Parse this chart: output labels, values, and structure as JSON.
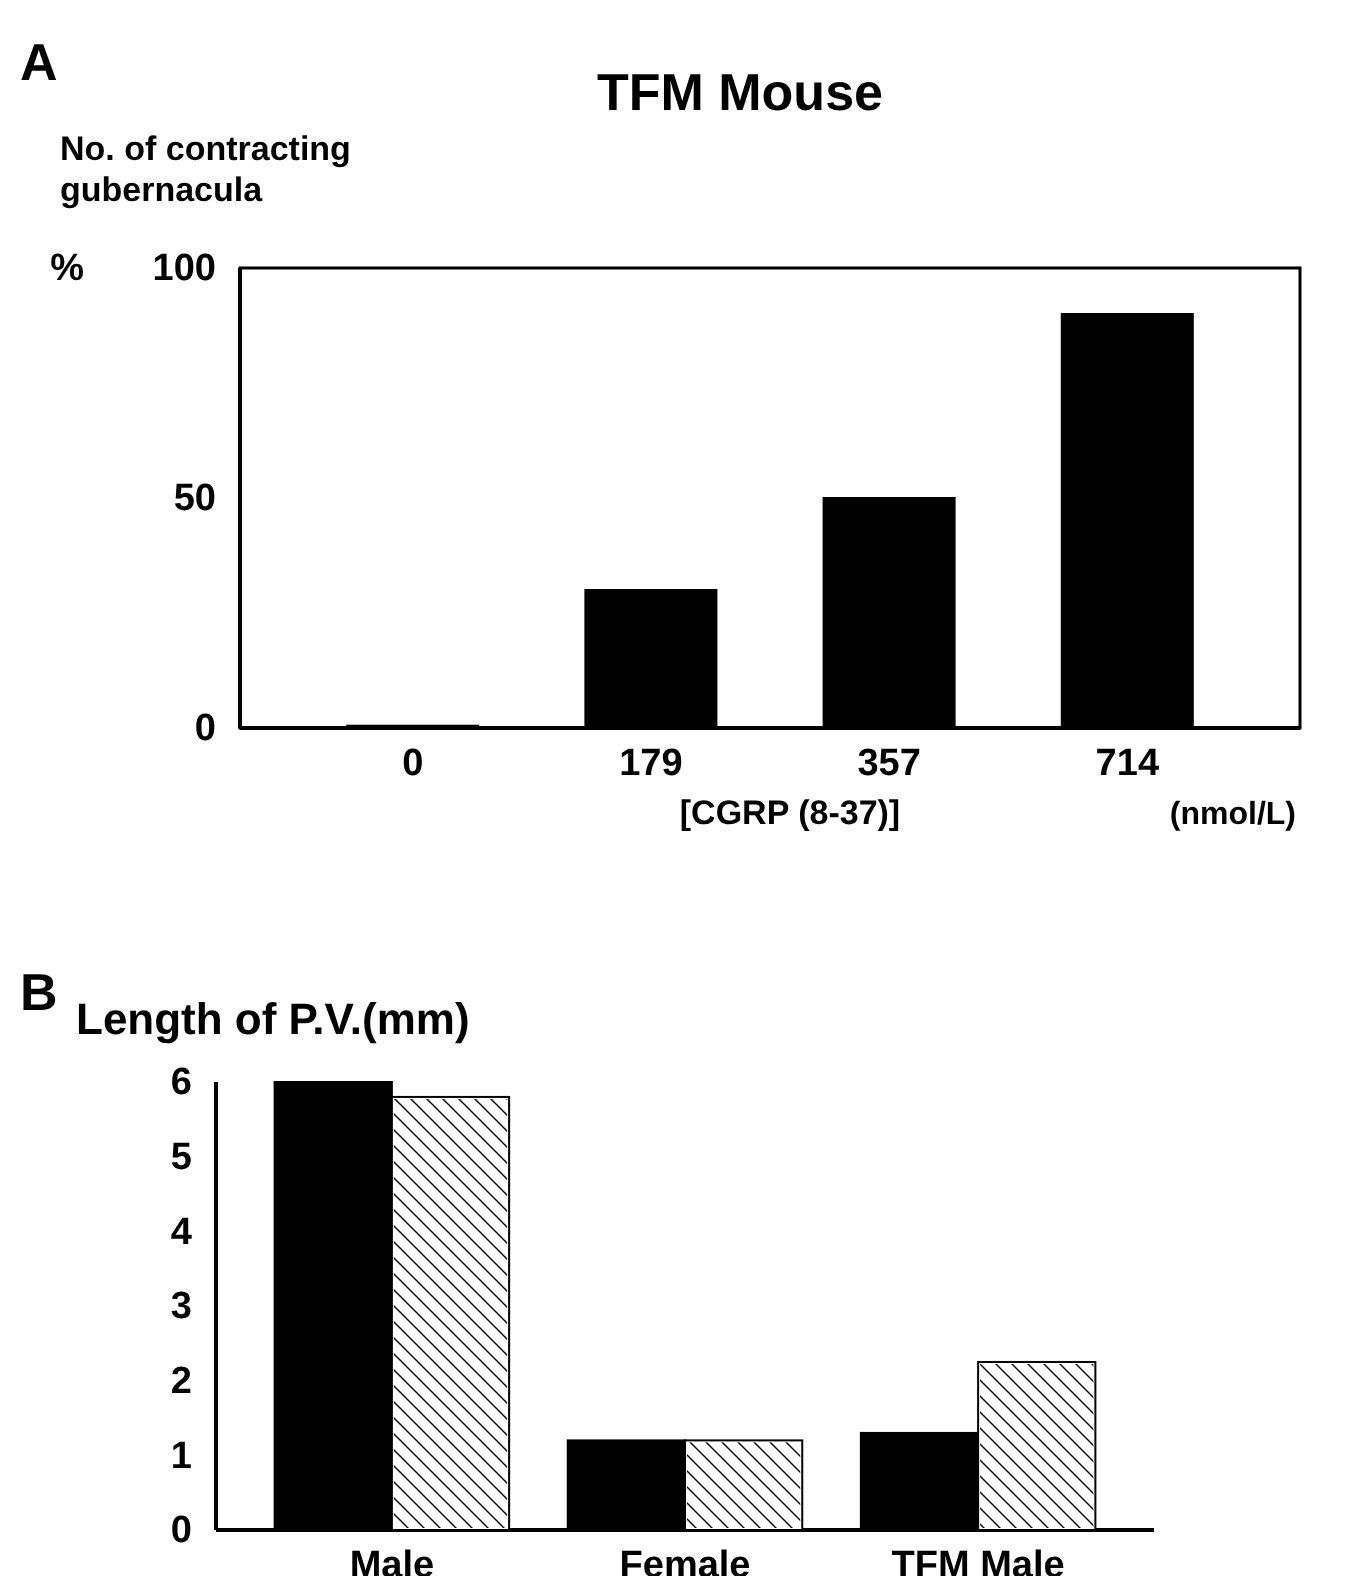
{
  "chart_data": [
    {
      "type": "bar",
      "title": "TFM Mouse",
      "ylabel": "No. of contracting gubernacula",
      "xlabel": "[CGRP (8-37)]",
      "annotations": [
        "A",
        "%",
        "(nmol/L)"
      ],
      "categories": [
        "0",
        "179",
        "357",
        "714"
      ],
      "values": [
        0.5,
        30,
        50,
        90
      ],
      "color": "#000000",
      "ylim": [
        0,
        100
      ],
      "yticks": [
        0,
        50,
        100
      ],
      "grid": false
    },
    {
      "type": "bar",
      "ylabel": "Length of P.V.(mm)",
      "annotations": [
        "B"
      ],
      "categories": [
        "Male",
        "Female",
        "TFM Male"
      ],
      "series": [
        {
          "color": "#000000",
          "values": [
            6.0,
            1.2,
            1.3
          ]
        },
        {
          "color": "#ffffff",
          "values": [
            5.8,
            1.2,
            2.25
          ]
        }
      ],
      "ylim": [
        0,
        6
      ],
      "yticks": [
        0,
        1,
        2,
        3,
        4,
        5,
        6
      ],
      "grid": false
    }
  ]
}
